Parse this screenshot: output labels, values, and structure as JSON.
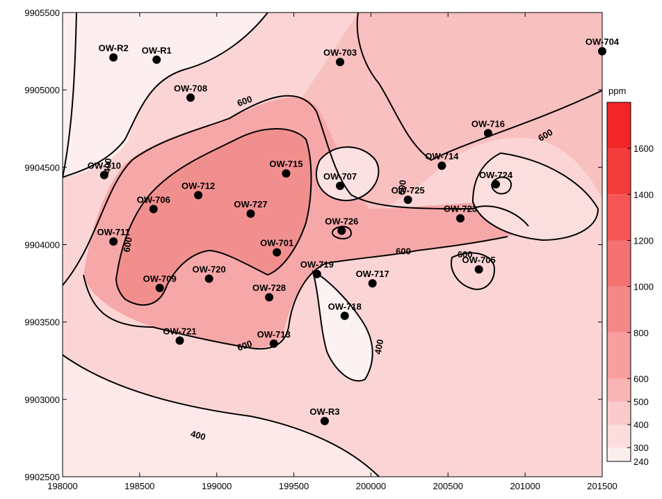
{
  "chart_data": {
    "type": "contour-map",
    "x_axis": {
      "range": [
        198000,
        201500
      ],
      "ticks": [
        "198000",
        "198500",
        "199000",
        "199500",
        "200000",
        "200500",
        "201000",
        "201500"
      ]
    },
    "y_axis": {
      "range": [
        9902500,
        9905500
      ],
      "ticks": [
        "9902500",
        "9903000",
        "9903500",
        "9904000",
        "9904500",
        "9905000",
        "9905500"
      ]
    },
    "colorbar": {
      "unit": "ppm",
      "levels": [
        240,
        300,
        400,
        500,
        600,
        800,
        1000,
        1200,
        1400,
        1600
      ],
      "tick_labels": [
        "240",
        "300",
        "400",
        "500",
        "600",
        "800",
        "1000",
        "1200",
        "1400",
        "1600"
      ],
      "colors": [
        "#ffffff",
        "#fdeeee",
        "#fcdcdc",
        "#fbcaca",
        "#f9b4b4",
        "#f79e9e",
        "#f48888",
        "#f47272",
        "#f45656",
        "#f33c3c",
        "#f22626"
      ]
    },
    "contour_labels": [
      {
        "text": "600",
        "x": 199180,
        "y": 9904930,
        "angle": -20
      },
      {
        "text": "600",
        "x": 201130,
        "y": 9904710,
        "angle": -30
      },
      {
        "text": "400",
        "x": 198290,
        "y": 9904510,
        "angle": -85
      },
      {
        "text": "600",
        "x": 198420,
        "y": 9904000,
        "angle": -80
      },
      {
        "text": "600",
        "x": 200200,
        "y": 9904370,
        "angle": -85
      },
      {
        "text": "600",
        "x": 200210,
        "y": 9903960,
        "angle": 0
      },
      {
        "text": "600",
        "x": 200610,
        "y": 9903940,
        "angle": 0
      },
      {
        "text": "600",
        "x": 199180,
        "y": 9903350,
        "angle": -20
      },
      {
        "text": "400",
        "x": 200050,
        "y": 9903340,
        "angle": -80
      },
      {
        "text": "400",
        "x": 198880,
        "y": 9902770,
        "angle": 15
      }
    ],
    "wells": [
      {
        "name": "OW-R2",
        "x": 198330,
        "y": 9905210
      },
      {
        "name": "OW-R1",
        "x": 198610,
        "y": 9905195
      },
      {
        "name": "OW-703",
        "x": 199800,
        "y": 9905180
      },
      {
        "name": "OW-704",
        "x": 201500,
        "y": 9905250
      },
      {
        "name": "OW-708",
        "x": 198830,
        "y": 9904950
      },
      {
        "name": "OW-716",
        "x": 200760,
        "y": 9904720
      },
      {
        "name": "OW-710",
        "x": 198270,
        "y": 9904450
      },
      {
        "name": "OW-714",
        "x": 200460,
        "y": 9904510
      },
      {
        "name": "OW-715",
        "x": 199450,
        "y": 9904460
      },
      {
        "name": "OW-707",
        "x": 199800,
        "y": 9904380
      },
      {
        "name": "OW-724",
        "x": 200810,
        "y": 9904390
      },
      {
        "name": "OW-712",
        "x": 198880,
        "y": 9904320
      },
      {
        "name": "OW-725",
        "x": 200240,
        "y": 9904290
      },
      {
        "name": "OW-706",
        "x": 198590,
        "y": 9904230
      },
      {
        "name": "OW-727",
        "x": 199220,
        "y": 9904200
      },
      {
        "name": "OW-723",
        "x": 200580,
        "y": 9904170
      },
      {
        "name": "OW-726",
        "x": 199810,
        "y": 9904090
      },
      {
        "name": "OW-711",
        "x": 198330,
        "y": 9904020
      },
      {
        "name": "OW-701",
        "x": 199390,
        "y": 9903950
      },
      {
        "name": "OW-705",
        "x": 200700,
        "y": 9903840
      },
      {
        "name": "OW-719",
        "x": 199650,
        "y": 9903810
      },
      {
        "name": "OW-720",
        "x": 198950,
        "y": 9903780
      },
      {
        "name": "OW-717",
        "x": 200010,
        "y": 9903750
      },
      {
        "name": "OW-709",
        "x": 198630,
        "y": 9903720
      },
      {
        "name": "OW-728",
        "x": 199340,
        "y": 9903660
      },
      {
        "name": "OW-718",
        "x": 199830,
        "y": 9903540
      },
      {
        "name": "OW-721",
        "x": 198760,
        "y": 9903380
      },
      {
        "name": "OW-713",
        "x": 199370,
        "y": 9903360
      },
      {
        "name": "OW-R3",
        "x": 199700,
        "y": 9902860
      }
    ]
  }
}
